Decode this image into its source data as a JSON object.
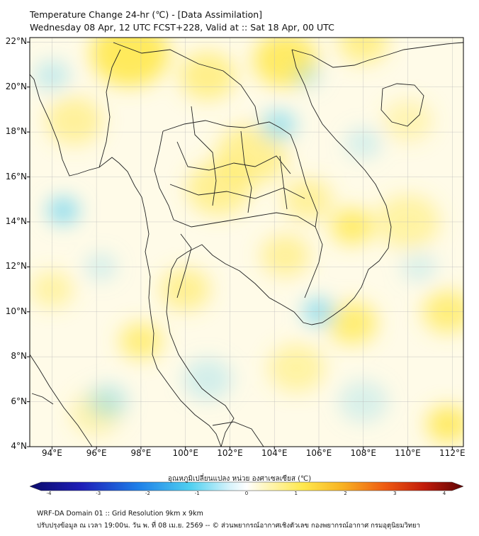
{
  "title": {
    "line1": "Temperature Change 24-hr (℃) - [Data Assimilation]",
    "line2": "Wednesday 08 Apr, 12 UTC FCST+228, Valid at :: Sat 18 Apr, 00 UTC"
  },
  "map": {
    "lat_labels": [
      "22°N",
      "20°N",
      "18°N",
      "16°N",
      "14°N",
      "12°N",
      "10°N",
      "8°N",
      "6°N",
      "4°N"
    ],
    "lon_labels": [
      "94°E",
      "96°E",
      "98°E",
      "100°E",
      "102°E",
      "104°E",
      "106°E",
      "108°E",
      "110°E",
      "112°E"
    ],
    "lat_range": [
      4,
      22.2
    ],
    "lon_range": [
      93,
      112.5
    ],
    "colors": {
      "land_border": "#222222",
      "grid": "#bbbbbb",
      "warm": "#ffe84d",
      "cool": "#7fd8f0"
    }
  },
  "colorbar": {
    "title": "อุณหภูมิเปลี่ยนแปลง หน่วย องศาเซลเซียส (℃)",
    "ticks": [
      "-4",
      "-3",
      "-2",
      "-1",
      "0",
      "1",
      "2",
      "3",
      "4"
    ],
    "range": [
      -4,
      4
    ]
  },
  "footer": {
    "line1": "WRF-DA Domain 01 :: Grid Resolution 9km x 9km",
    "line2": "ปรับปรุงข้อมูล ณ เวลา 19:00น. วัน พ. ที่ 08 เม.ย. 2569 -- © ส่วนพยากรณ์อากาศเชิงตัวเลข กองพยากรณ์อากาศ กรมอุตุนิยมวิทยา"
  }
}
